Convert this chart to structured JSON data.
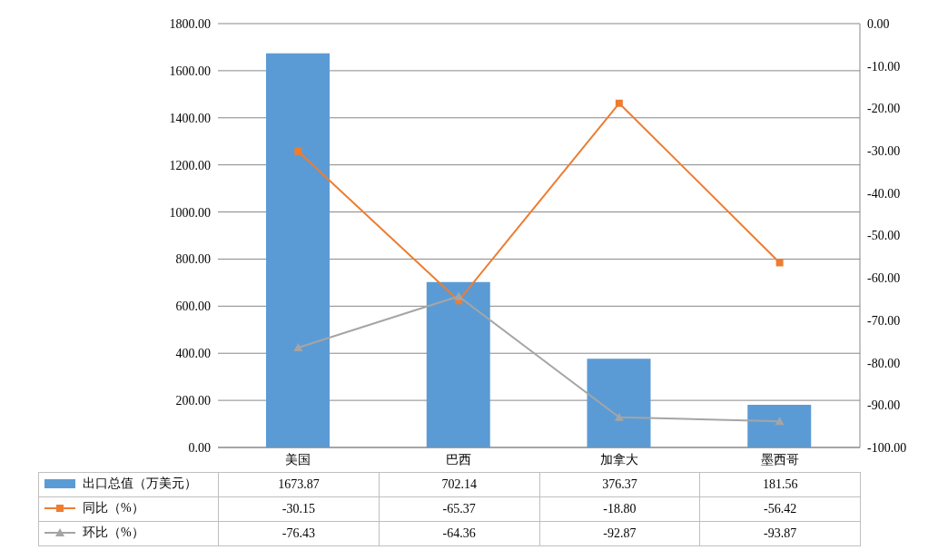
{
  "chart_data": {
    "type": "bar",
    "categories": [
      "美国",
      "巴西",
      "加拿大",
      "墨西哥"
    ],
    "series": [
      {
        "name": "出口总值（万美元）",
        "color": "#5b9bd5",
        "values": [
          1673.87,
          702.14,
          376.37,
          181.56
        ],
        "value_labels": [
          "1673.87",
          "702.14",
          "376.37",
          "181.56"
        ]
      },
      {
        "name": "同比（%）",
        "type": "line",
        "axis": "y2",
        "color": "#ed7d31",
        "marker": "square",
        "values": [
          -30.15,
          -65.37,
          -18.8,
          -56.42
        ],
        "value_labels": [
          "-30.15",
          "-65.37",
          "-18.80",
          "-56.42"
        ]
      },
      {
        "name": "环比（%）",
        "type": "line",
        "axis": "y2",
        "color": "#a5a5a5",
        "marker": "triangle",
        "values": [
          -76.43,
          -64.36,
          -92.87,
          -93.87
        ],
        "value_labels": [
          "-76.43",
          "-64.36",
          "-92.87",
          "-93.87"
        ]
      }
    ],
    "ylim": [
      0,
      1800
    ],
    "yticks": [
      {
        "value": 0,
        "label": "0.00"
      },
      {
        "value": 200,
        "label": "200.00"
      },
      {
        "value": 400,
        "label": "400.00"
      },
      {
        "value": 600,
        "label": "600.00"
      },
      {
        "value": 800,
        "label": "800.00"
      },
      {
        "value": 1000,
        "label": "1000.00"
      },
      {
        "value": 1200,
        "label": "1200.00"
      },
      {
        "value": 1400,
        "label": "1400.00"
      },
      {
        "value": 1600,
        "label": "1600.00"
      },
      {
        "value": 1800,
        "label": "1800.00"
      }
    ],
    "y2lim": [
      -100,
      0
    ],
    "y2ticks": [
      {
        "value": 0,
        "label": "0.00"
      },
      {
        "value": -10,
        "label": "-10.00"
      },
      {
        "value": -20,
        "label": "-20.00"
      },
      {
        "value": -30,
        "label": "-30.00"
      },
      {
        "value": -40,
        "label": "-40.00"
      },
      {
        "value": -50,
        "label": "-50.00"
      },
      {
        "value": -60,
        "label": "-60.00"
      },
      {
        "value": -70,
        "label": "-70.00"
      },
      {
        "value": -80,
        "label": "-80.00"
      },
      {
        "value": -90,
        "label": "-90.00"
      },
      {
        "value": -100,
        "label": "-100.00"
      }
    ],
    "grid": "y",
    "legend": "bottom"
  }
}
